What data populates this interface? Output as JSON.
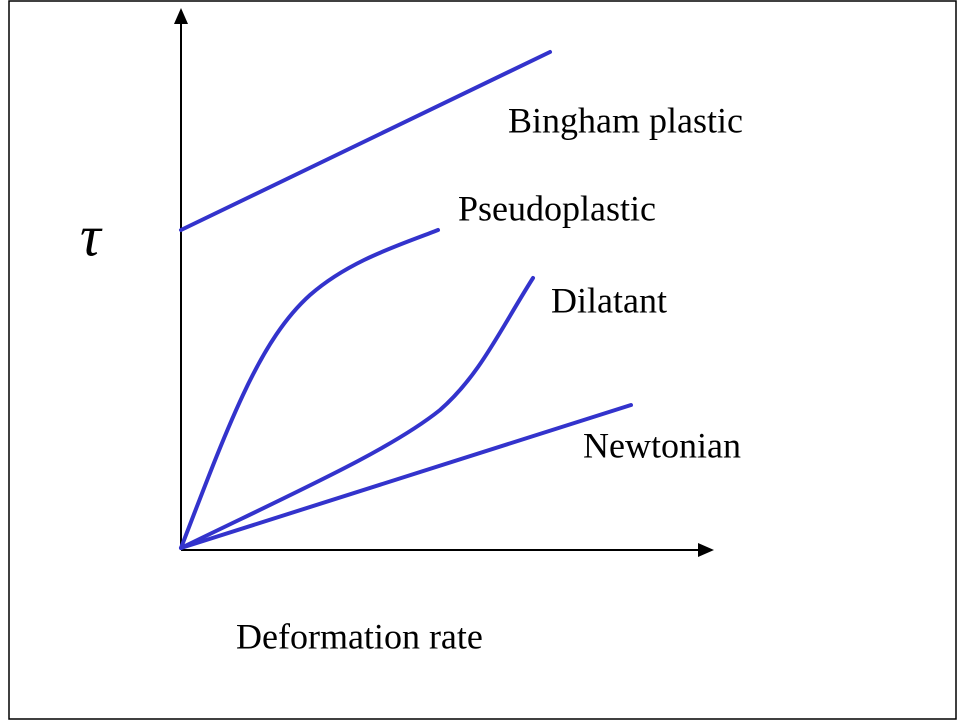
{
  "diagram": {
    "y_axis_label": "τ",
    "x_axis_label": "Deformation rate",
    "curves": [
      {
        "label": "Bingham plastic"
      },
      {
        "label": "Pseudoplastic"
      },
      {
        "label": "Dilatant"
      },
      {
        "label": "Newtonian"
      }
    ]
  }
}
